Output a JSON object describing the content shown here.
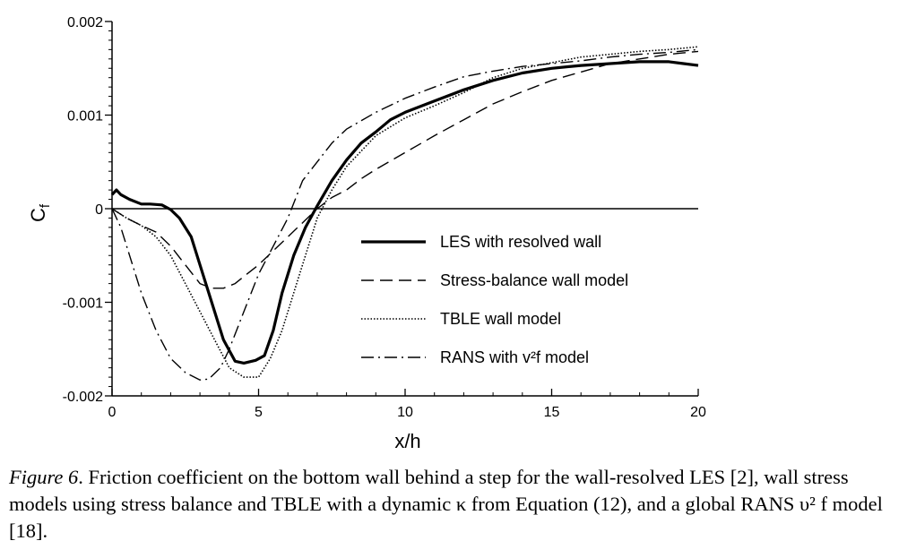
{
  "chart_data": {
    "type": "line",
    "xlabel": "x/h",
    "ylabel": "C",
    "ylabel_sub": "f",
    "xlim": [
      0,
      20
    ],
    "ylim": [
      -0.002,
      0.002
    ],
    "xticks": [
      0,
      5,
      10,
      15,
      20
    ],
    "xtick_labels": [
      "0",
      "5",
      "10",
      "15",
      "20"
    ],
    "yticks": [
      -0.002,
      -0.001,
      0,
      0.001,
      0.002
    ],
    "ytick_labels": [
      "-0.002",
      "-0.001",
      "0",
      "0.001",
      "0.002"
    ],
    "legend_position": "center-right",
    "zero_line": true,
    "series": [
      {
        "name": "LES with resolved wall",
        "style": "solid",
        "x": [
          0,
          0.15,
          0.3,
          0.6,
          1.0,
          1.3,
          1.7,
          2.0,
          2.3,
          2.7,
          3.0,
          3.4,
          3.8,
          4.2,
          4.5,
          4.9,
          5.2,
          5.5,
          5.8,
          6.2,
          6.6,
          7.0,
          7.5,
          8.0,
          8.5,
          9.0,
          9.5,
          10,
          11,
          12,
          13,
          14,
          15,
          16,
          17,
          18,
          19,
          19.5,
          20
        ],
        "y": [
          0.00015,
          0.0002,
          0.00015,
          0.0001,
          5e-05,
          5e-05,
          4e-05,
          -1e-05,
          -0.0001,
          -0.0003,
          -0.0006,
          -0.001,
          -0.0014,
          -0.00163,
          -0.00165,
          -0.00162,
          -0.00157,
          -0.0013,
          -0.0009,
          -0.0005,
          -0.0002,
          3e-05,
          0.0003,
          0.00052,
          0.0007,
          0.00082,
          0.00095,
          0.00103,
          0.00115,
          0.00127,
          0.00137,
          0.00145,
          0.0015,
          0.00153,
          0.00155,
          0.00157,
          0.00157,
          0.00155,
          0.00153
        ]
      },
      {
        "name": "Stress-balance wall model",
        "style": "dashed",
        "x": [
          0,
          0.5,
          1.0,
          1.5,
          2.0,
          2.5,
          3.0,
          3.4,
          3.8,
          4.2,
          4.6,
          5.0,
          5.5,
          6.0,
          6.5,
          7.0,
          7.5,
          8.0,
          8.5,
          9,
          10,
          11,
          12,
          13,
          14,
          15,
          16,
          17,
          18,
          19,
          20
        ],
        "y": [
          0,
          -0.0001,
          -0.00018,
          -0.00025,
          -0.0004,
          -0.0006,
          -0.0008,
          -0.00085,
          -0.00085,
          -0.0008,
          -0.0007,
          -0.0006,
          -0.00045,
          -0.0003,
          -0.00015,
          0,
          0.00012,
          0.0002,
          0.00032,
          0.00042,
          0.0006,
          0.00078,
          0.00095,
          0.00112,
          0.00125,
          0.00137,
          0.00146,
          0.00155,
          0.0016,
          0.00165,
          0.00168
        ]
      },
      {
        "name": "TBLE wall model",
        "style": "dotted",
        "x": [
          0,
          0.5,
          1.0,
          1.5,
          2.0,
          2.5,
          3.0,
          3.5,
          4.0,
          4.5,
          5.0,
          5.4,
          5.8,
          6.2,
          6.6,
          7.0,
          7.5,
          8,
          9,
          10,
          11,
          12,
          13,
          14,
          15,
          16,
          17,
          18,
          19,
          20
        ],
        "y": [
          0,
          -0.0001,
          -0.00018,
          -0.0003,
          -0.0005,
          -0.0008,
          -0.0011,
          -0.0014,
          -0.0017,
          -0.0018,
          -0.0018,
          -0.0016,
          -0.0013,
          -0.0009,
          -0.0005,
          -0.0001,
          0.0002,
          0.00045,
          0.00078,
          0.00097,
          0.0011,
          0.00124,
          0.0014,
          0.0015,
          0.00156,
          0.00162,
          0.00165,
          0.00168,
          0.0017,
          0.00173
        ]
      },
      {
        "name": "RANS with v²f model",
        "style": "dashdot",
        "x": [
          0,
          0.3,
          0.6,
          1.0,
          1.5,
          2.0,
          2.5,
          3.0,
          3.3,
          3.7,
          4.0,
          4.5,
          5.0,
          5.5,
          6.0,
          6.5,
          7.0,
          7.5,
          8,
          9,
          10,
          11,
          12,
          13,
          14,
          15,
          16,
          17,
          18,
          19,
          20
        ],
        "y": [
          0,
          -0.0002,
          -0.0005,
          -0.0009,
          -0.0013,
          -0.0016,
          -0.00175,
          -0.00183,
          -0.00182,
          -0.0017,
          -0.0015,
          -0.0011,
          -0.0007,
          -0.0004,
          -0.0001,
          0.0003,
          0.0005,
          0.0007,
          0.00085,
          0.00103,
          0.00118,
          0.0013,
          0.00141,
          0.00147,
          0.00152,
          0.00155,
          0.00158,
          0.00162,
          0.00165,
          0.00167,
          0.0017
        ]
      }
    ]
  },
  "caption": {
    "label": "Figure 6",
    "text": ". Friction coefficient on the bottom wall behind a step for the wall-resolved LES [2], wall stress models using stress balance and TBLE with a dynamic κ from Equation (12), and a global RANS υ² f model [18]."
  }
}
